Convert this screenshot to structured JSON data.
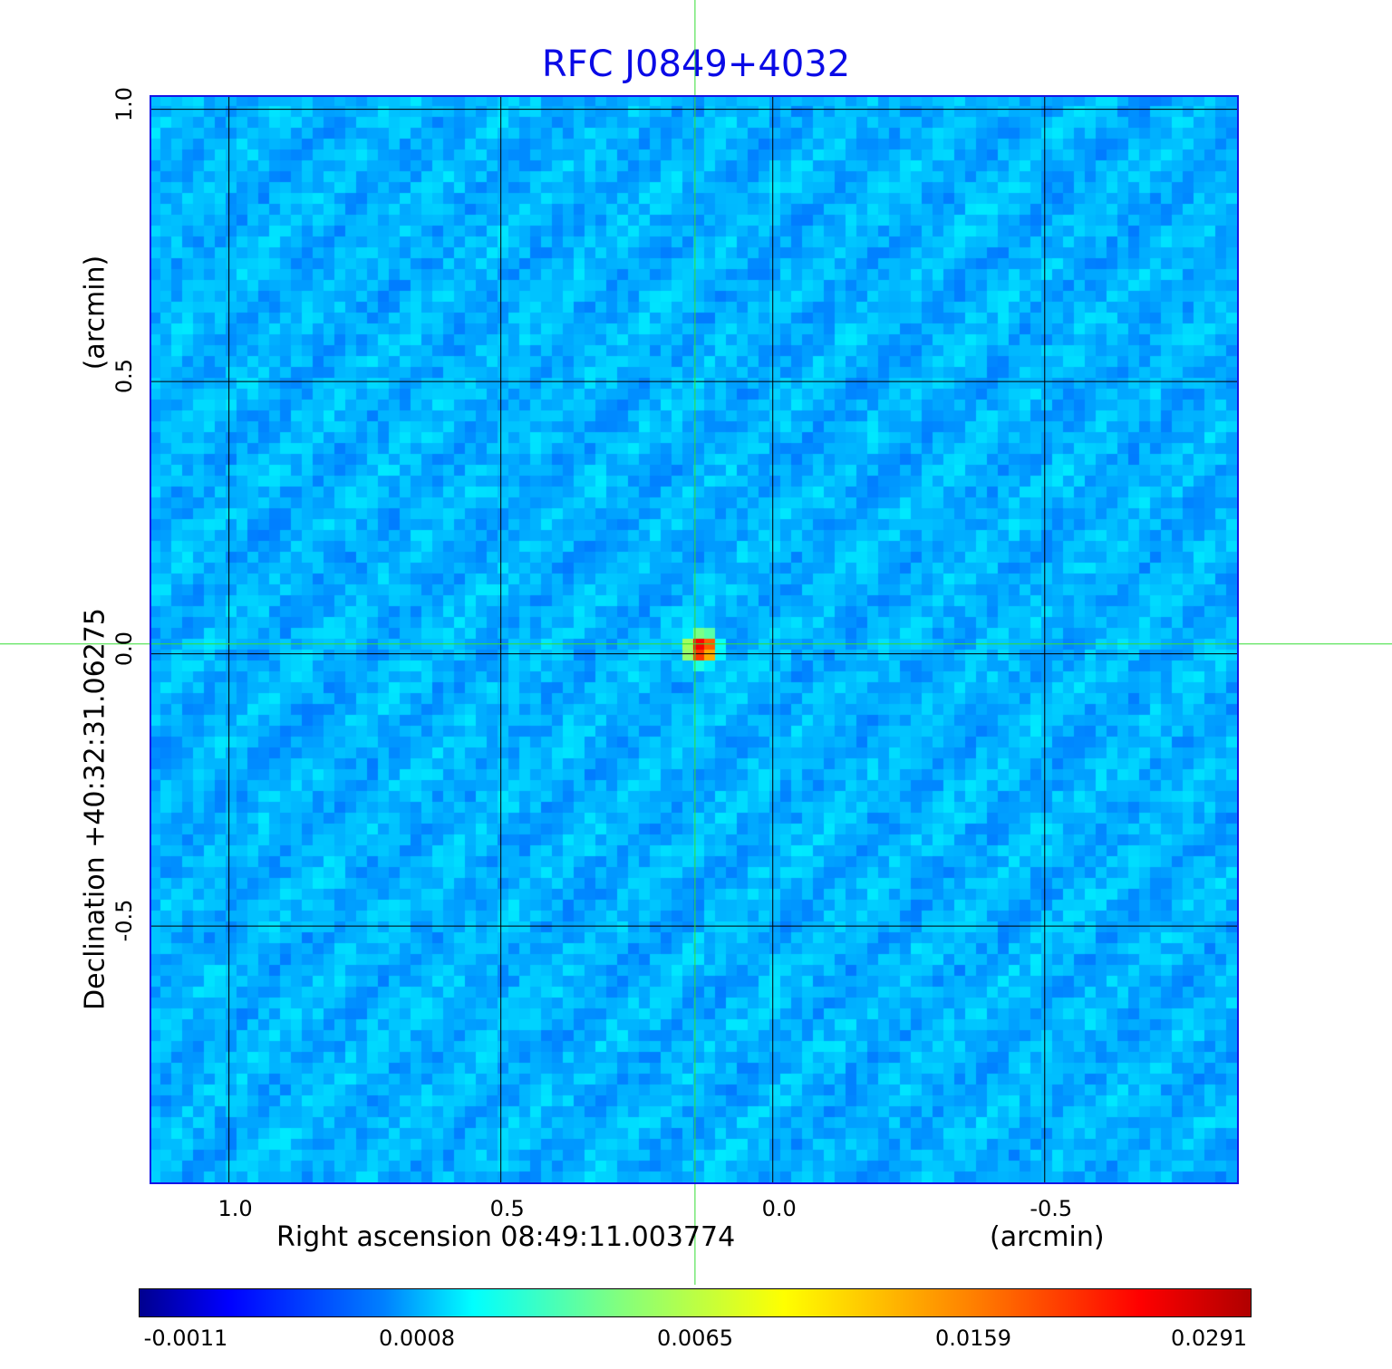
{
  "chart_data": {
    "type": "heatmap",
    "title": "RFC J0849+4032",
    "xlabel": "Right ascension  08:49:11.003774",
    "xunit": "(arcmin)",
    "ylabel": "Declination  +40:32:31.06275",
    "yunit": "(arcmin)",
    "x_ticks": [
      {
        "value": 1.0,
        "label": "1.0"
      },
      {
        "value": 0.5,
        "label": "0.5"
      },
      {
        "value": 0.0,
        "label": "0.0"
      },
      {
        "value": -0.5,
        "label": "-0.5"
      }
    ],
    "y_ticks": [
      {
        "value": 1.0,
        "label": "1.0"
      },
      {
        "value": 0.5,
        "label": "0.5"
      },
      {
        "value": 0.0,
        "label": "0.0"
      },
      {
        "value": -0.5,
        "label": "-0.5"
      }
    ],
    "xlim": [
      1.146,
      -0.857
    ],
    "ylim": [
      -0.974,
      1.026
    ],
    "grid": true,
    "crosshair": {
      "x": 0.143,
      "y": 0.018
    },
    "peak": {
      "x": 0.13,
      "y": 0.01,
      "value": 0.0291
    },
    "colormap": "jet",
    "colorbar": {
      "placement": "bottom",
      "ticks": [
        "-0.0011",
        "0.0008",
        "0.0065",
        "0.0159",
        "0.0291"
      ],
      "min": -0.0011,
      "max": 0.0291
    }
  }
}
